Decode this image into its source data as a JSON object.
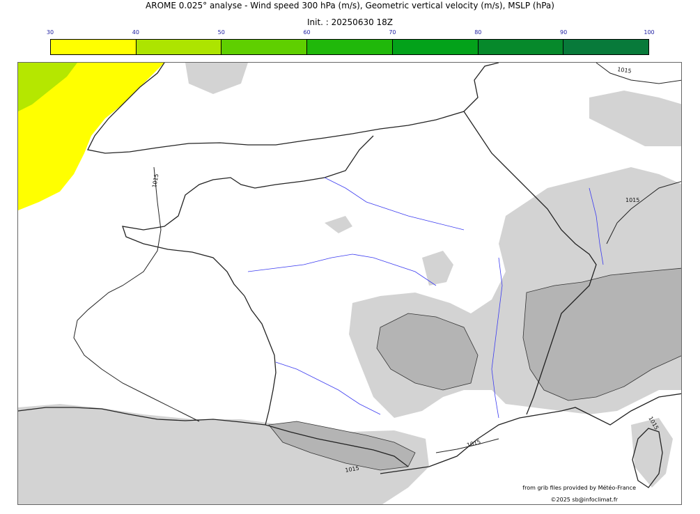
{
  "header": {
    "title": "AROME 0.025° analyse - Wind speed 300 hPa (m/s), Geometric vertical velocity (m/s), MSLP (hPa)",
    "init": "Init. : 20250630 18Z"
  },
  "colorbar": {
    "ticks": [
      "30",
      "40",
      "50",
      "60",
      "70",
      "80",
      "90",
      "100"
    ],
    "colors": [
      "#ffff00",
      "#ade400",
      "#5fcf00",
      "#20b80a",
      "#03a21a",
      "#06892b",
      "#087a3a",
      "#06734a"
    ]
  },
  "map": {
    "isobar_labels": [
      "1015",
      "1015",
      "1015",
      "1015",
      "1015",
      "1015"
    ],
    "colors": {
      "terrain_gray": "#d3d3d3",
      "terrain_dark": "#b4b4b4",
      "rivers": "#3a3af0",
      "coast": "#222222",
      "wind_max": "#ffff00",
      "wind_mid": "#ade400"
    }
  },
  "credits": {
    "source": "from grib files provided by Météo-France",
    "copyright": "©2025 sb@infoclimat.fr"
  }
}
